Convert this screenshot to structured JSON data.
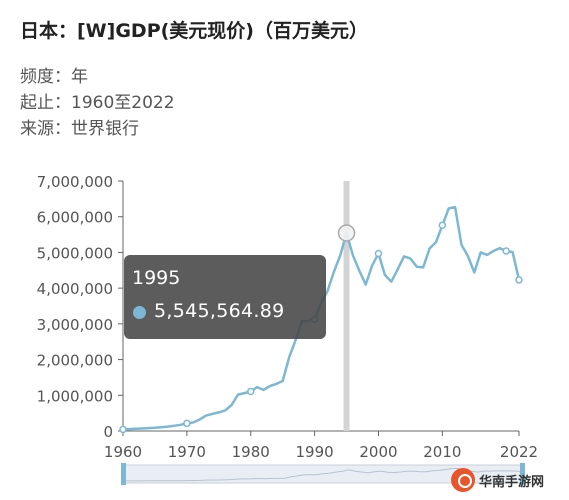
{
  "header": {
    "title": "日本：[W]GDP(美元现价)（百万美元）",
    "frequency_label": "频度：",
    "frequency_value": "年",
    "range_label": "起止：",
    "range_value": "1960至2022",
    "source_label": "来源：",
    "source_value": "世界银行"
  },
  "tooltip": {
    "year": "1995",
    "value": "5,545,564.89"
  },
  "watermark": {
    "text": "华南手游网"
  },
  "colors": {
    "line": "#7cb8d3",
    "slider_handle": "#7cb8d3",
    "crosshair": "#d3d3d3"
  },
  "chart_data": {
    "type": "line",
    "series": [
      {
        "x": [
          1960,
          1961,
          1962,
          1963,
          1964,
          1965,
          1966,
          1967,
          1968,
          1969,
          1970,
          1971,
          1972,
          1973,
          1974,
          1975,
          1976,
          1977,
          1978,
          1979,
          1980,
          1981,
          1982,
          1983,
          1984,
          1985,
          1986,
          1987,
          1988,
          1989,
          1990,
          1991,
          1992,
          1993,
          1994,
          1995,
          1996,
          1997,
          1998,
          1999,
          2000,
          2001,
          2002,
          2003,
          2004,
          2005,
          2006,
          2007,
          2008,
          2009,
          2010,
          2011,
          2012,
          2013,
          2014,
          2015,
          2016,
          2017,
          2018,
          2019,
          2020,
          2021,
          2022
        ],
        "values": [
          44000,
          54000,
          61000,
          70000,
          82000,
          91000,
          106000,
          124000,
          146000,
          173000,
          212000,
          240000,
          318000,
          432000,
          480000,
          522000,
          577000,
          728000,
          1020000,
          1060000,
          1105000,
          1230000,
          1150000,
          1260000,
          1320000,
          1400000,
          2060000,
          2540000,
          3070000,
          3080000,
          3130000,
          3580000,
          3910000,
          4450000,
          4910000,
          5545564.89,
          4920000,
          4490000,
          4100000,
          4630000,
          4970000,
          4370000,
          4180000,
          4520000,
          4890000,
          4830000,
          4600000,
          4580000,
          5110000,
          5290000,
          5760000,
          6230000,
          6270000,
          5210000,
          4900000,
          4440000,
          5000000,
          4930000,
          5040000,
          5120000,
          5040000,
          5010000,
          4230000
        ]
      }
    ],
    "x_ticks": [
      1960,
      1970,
      1980,
      1990,
      2000,
      2010,
      2022
    ],
    "y_ticks": [
      0,
      1000000,
      2000000,
      3000000,
      4000000,
      5000000,
      6000000,
      7000000
    ],
    "y_tick_labels": [
      "0",
      "1,000,000",
      "2,000,000",
      "3,000,000",
      "4,000,000",
      "5,000,000",
      "6,000,000",
      "7,000,000"
    ],
    "xlim": [
      1960,
      2022
    ],
    "ylim": [
      0,
      7000000
    ],
    "highlight_x": 1995,
    "marker_years": [
      1960,
      1970,
      1980,
      1990,
      2000,
      2010,
      2020,
      2022
    ],
    "grid": false
  }
}
